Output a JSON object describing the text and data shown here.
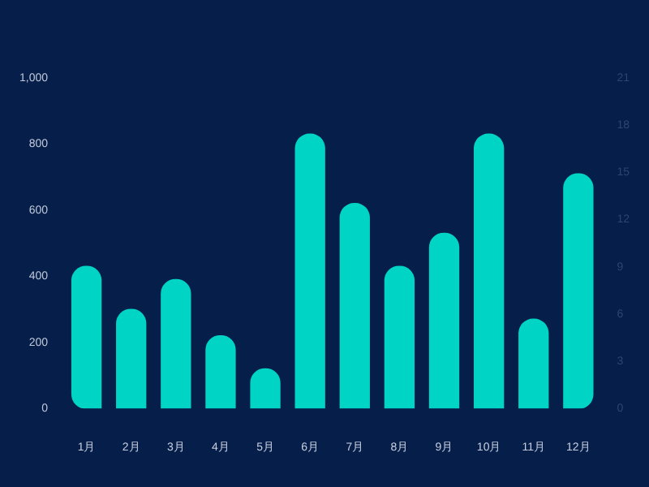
{
  "chart_data": {
    "type": "bar",
    "categories": [
      "1月",
      "2月",
      "3月",
      "4月",
      "5月",
      "6月",
      "7月",
      "8月",
      "9月",
      "10月",
      "11月",
      "12月"
    ],
    "series": [
      {
        "color": "#00d4c4",
        "values": [
          430,
          300,
          390,
          220,
          120,
          830,
          620,
          430,
          530,
          830,
          270,
          710
        ]
      }
    ],
    "ylim": [
      0,
      1000
    ],
    "yticks": [
      0,
      200,
      400,
      600,
      800,
      {
        "value": 1000,
        "label": "1,000"
      }
    ],
    "y2lim": [
      0,
      21
    ],
    "y2ticks": [
      0,
      3,
      6,
      9,
      12,
      15,
      18,
      21
    ],
    "grid": false,
    "legend": false
  }
}
